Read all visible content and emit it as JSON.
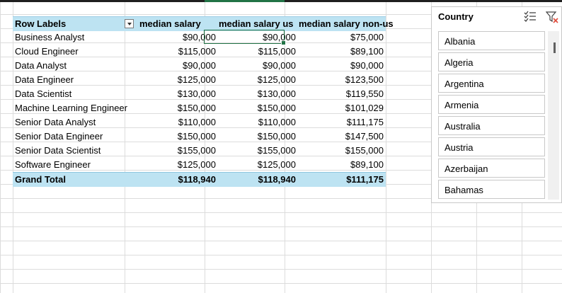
{
  "pivot": {
    "headers": {
      "row_labels": "Row Labels",
      "median_salary": "median salary",
      "median_salary_us": "median salary us",
      "median_salary_non_us": "median salary non-us"
    },
    "rows": [
      {
        "label": "Business Analyst",
        "median": "$90,000",
        "us": "$90,000",
        "non_us": "$75,000"
      },
      {
        "label": "Cloud Engineer",
        "median": "$115,000",
        "us": "$115,000",
        "non_us": "$89,100"
      },
      {
        "label": "Data Analyst",
        "median": "$90,000",
        "us": "$90,000",
        "non_us": "$90,000"
      },
      {
        "label": "Data Engineer",
        "median": "$125,000",
        "us": "$125,000",
        "non_us": "$123,500"
      },
      {
        "label": "Data Scientist",
        "median": "$130,000",
        "us": "$130,000",
        "non_us": "$119,550"
      },
      {
        "label": "Machine Learning Engineer",
        "median": "$150,000",
        "us": "$150,000",
        "non_us": "$101,029"
      },
      {
        "label": "Senior Data Analyst",
        "median": "$110,000",
        "us": "$110,000",
        "non_us": "$111,175"
      },
      {
        "label": "Senior Data Engineer",
        "median": "$150,000",
        "us": "$150,000",
        "non_us": "$147,500"
      },
      {
        "label": "Senior Data Scientist",
        "median": "$155,000",
        "us": "$155,000",
        "non_us": "$155,000"
      },
      {
        "label": "Software Engineer",
        "median": "$125,000",
        "us": "$125,000",
        "non_us": "$89,100"
      }
    ],
    "total": {
      "label": "Grand Total",
      "median": "$118,940",
      "us": "$118,940",
      "non_us": "$111,175"
    }
  },
  "slicer": {
    "title": "Country",
    "items": [
      "Albania",
      "Algeria",
      "Argentina",
      "Armenia",
      "Australia",
      "Austria",
      "Azerbaijan",
      "Bahamas"
    ]
  },
  "colors": {
    "header_fill": "#bde3f2",
    "selection": "#217346",
    "clear_filter_x": "#e04a3a"
  }
}
